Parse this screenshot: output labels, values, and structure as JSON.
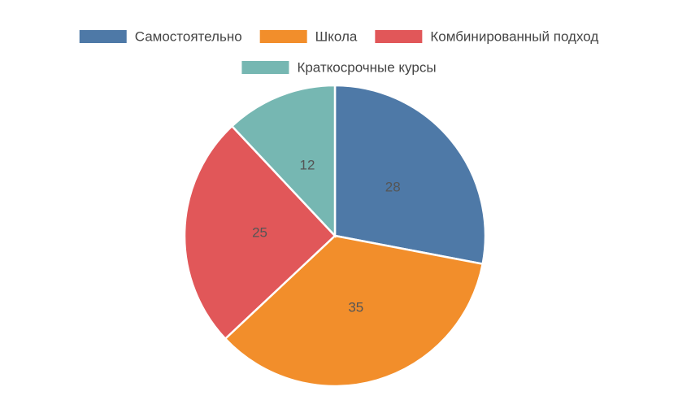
{
  "chart_data": {
    "type": "pie",
    "categories": [
      "Самостоятельно",
      "Школа",
      "Комбинированный подход",
      "Краткосрочные курсы"
    ],
    "values": [
      28,
      35,
      25,
      12
    ],
    "colors": [
      "#4e79a7",
      "#f28e2b",
      "#e15759",
      "#76b7b2"
    ]
  }
}
